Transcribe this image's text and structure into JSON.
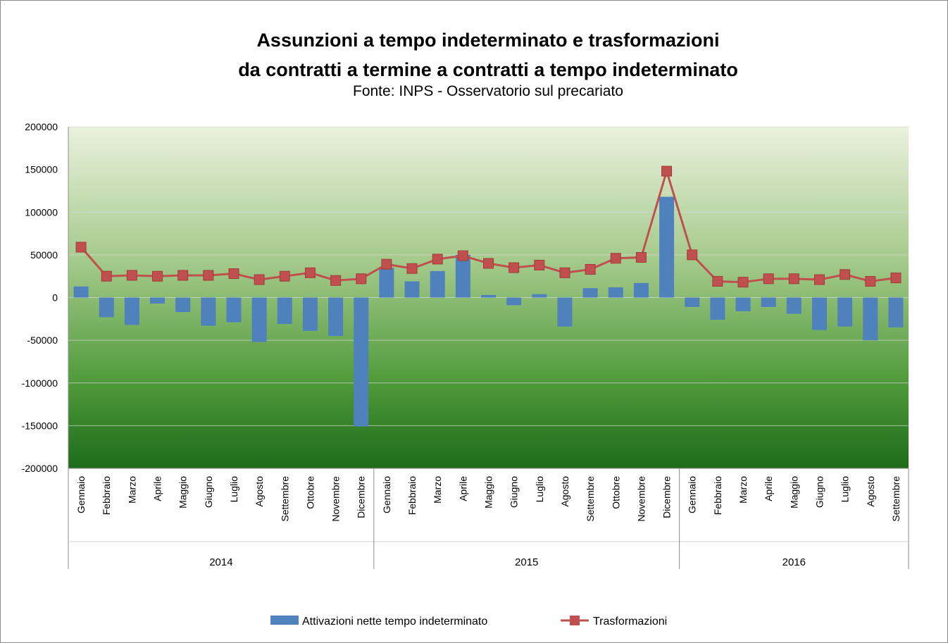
{
  "title_line1": "Assunzioni a tempo indeterminato e trasformazioni",
  "title_line2": "da contratti a termine a contratti a tempo indeterminato",
  "subtitle": "Fonte: INPS - Osservatorio sul precariato",
  "colors": {
    "bar": "#4f81bd",
    "line": "#c0504d",
    "bg_top": "#eaf1dd",
    "bg_bottom": "#1e6b1a",
    "grid": "#d9d9d9"
  },
  "chart_data": {
    "type": "bar",
    "title": "Assunzioni a tempo indeterminato e trasformazioni da contratti a termine a contratti a tempo indeterminato",
    "subtitle": "Fonte: INPS - Osservatorio sul precariato",
    "ylim": [
      -200000,
      200000
    ],
    "yticks": [
      "200000",
      "150000",
      "100000",
      "50000",
      "0",
      "-50000",
      "-100000",
      "-150000",
      "-200000"
    ],
    "categories": [
      "Gennaio",
      "Febbraio",
      "Marzo",
      "Aprile",
      "Maggio",
      "Giugno",
      "Luglio",
      "Agosto",
      "Settembre",
      "Ottobre",
      "Novembre",
      "Dicembre",
      "Gennaio",
      "Febbraio",
      "Marzo",
      "Aprile",
      "Maggio",
      "Giugno",
      "Luglio",
      "Agosto",
      "Settembre",
      "Ottobre",
      "Novembre",
      "Dicembre",
      "Gennaio",
      "Febbraio",
      "Marzo",
      "Aprile",
      "Maggio",
      "Giugno",
      "Luglio",
      "Agosto",
      "Settembre"
    ],
    "groups": [
      {
        "label": "2014",
        "count": 12
      },
      {
        "label": "2015",
        "count": 12
      },
      {
        "label": "2016",
        "count": 9
      }
    ],
    "grid": true,
    "legend_position": "bottom",
    "series": [
      {
        "name": "Attivazioni nette tempo indeterminato",
        "type": "bar",
        "values": [
          13000,
          -23000,
          -32000,
          -7000,
          -17000,
          -33000,
          -29000,
          -52000,
          -31000,
          -39000,
          -45000,
          -151000,
          35000,
          19000,
          31000,
          50000,
          3000,
          -9000,
          4000,
          -34000,
          11000,
          12000,
          17000,
          118000,
          -11000,
          -26000,
          -16000,
          -11000,
          -19000,
          -38000,
          -34000,
          -50000,
          -35000
        ]
      },
      {
        "name": "Trasformazioni",
        "type": "line",
        "values": [
          59000,
          25000,
          26000,
          25000,
          26000,
          26000,
          28000,
          21000,
          25000,
          29000,
          20000,
          22000,
          39000,
          34000,
          45000,
          49000,
          40000,
          35000,
          38000,
          29000,
          33000,
          46000,
          47000,
          148000,
          50000,
          19000,
          18000,
          22000,
          22000,
          21000,
          27000,
          19000,
          23000
        ]
      }
    ]
  }
}
